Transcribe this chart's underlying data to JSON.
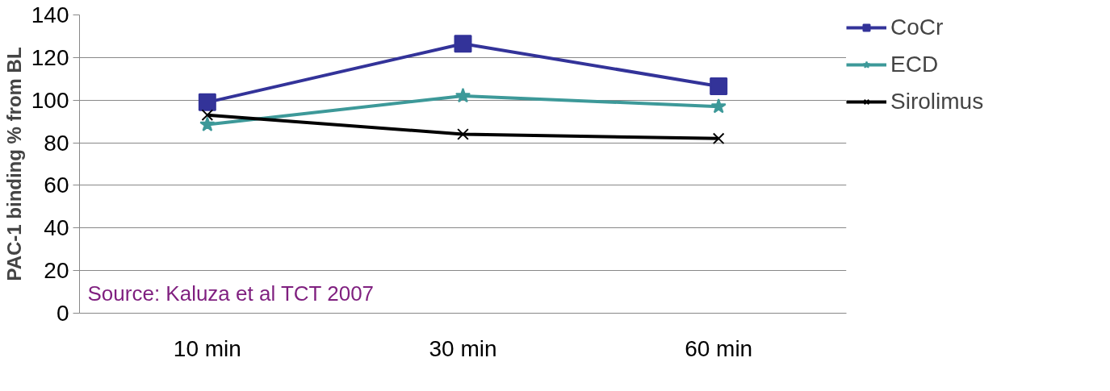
{
  "chart_data": {
    "type": "line",
    "ylabel": "PAC-1 binding % from BL",
    "categories": [
      "10 min",
      "30 min",
      "60 min"
    ],
    "series": [
      {
        "name": "CoCr",
        "color": "#333399",
        "marker": "square",
        "values": [
          99,
          126.5,
          106.5
        ]
      },
      {
        "name": "ECD",
        "color": "#3d9999",
        "marker": "star",
        "values": [
          88.5,
          102,
          97
        ]
      },
      {
        "name": "Sirolimus",
        "color": "#000000",
        "marker": "cross",
        "values": [
          93,
          84,
          82
        ]
      }
    ],
    "ylim": [
      0,
      140
    ],
    "yticks": [
      0,
      20,
      40,
      60,
      80,
      100,
      120,
      140
    ],
    "grid": "y",
    "legend": "top right",
    "annotations": [
      "Source: Kaluza et al TCT 2007"
    ]
  }
}
